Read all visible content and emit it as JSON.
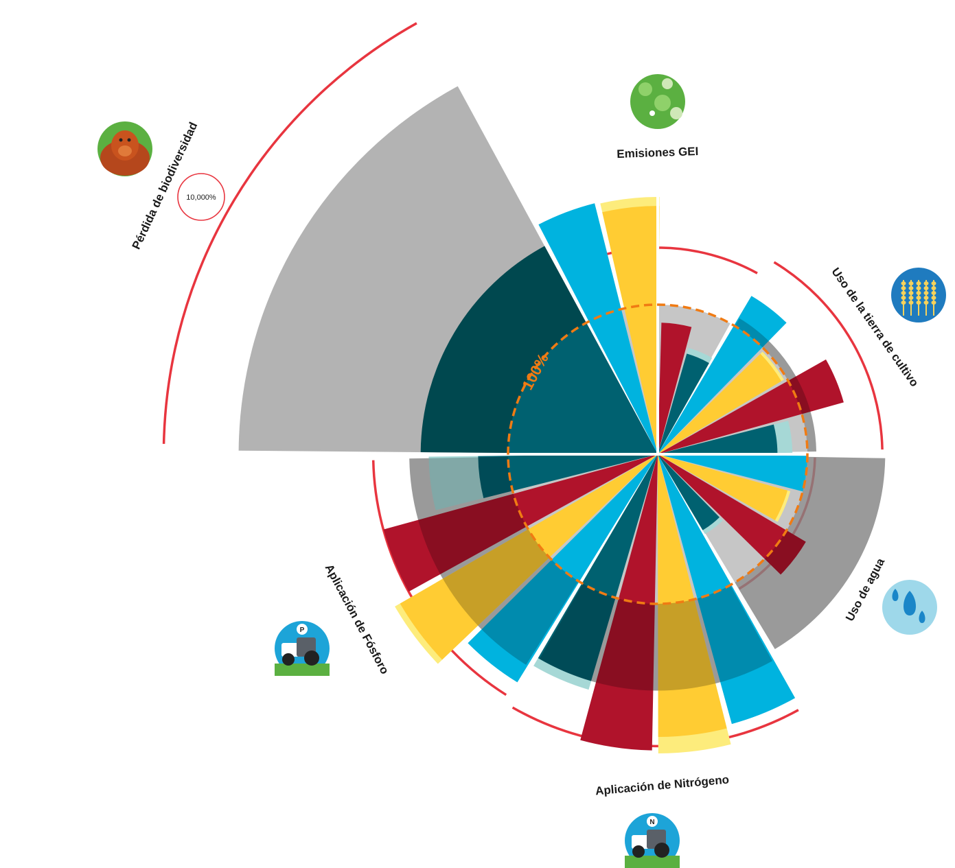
{
  "chart_data": {
    "type": "polar-bar",
    "reference_label": "100%",
    "biodiversity_badge": "10,000%",
    "colors": {
      "boundary": "#e8353f",
      "grey": "#b3b3b3",
      "dark_teal": "#006170",
      "light_teal": "#a6d8d6",
      "yellow": "#ffcc33",
      "light_yellow": "#fdec7c",
      "blue": "#00b3df",
      "red": "#b0132b",
      "reference": "#f07b13"
    },
    "categories": [
      {
        "label": "Emisiones GEI",
        "icon": "globe-emissions-icon",
        "values": {
          "boundary": 128,
          "grey": 100,
          "dark_teal": 70,
          "light_teal": 74,
          "yellow": 166,
          "light_yellow": 172,
          "blue": 173,
          "red": 88
        }
      },
      {
        "label": "Uso de la tierra de cultivo",
        "icon": "wheat-icon",
        "values": {
          "boundary": 140,
          "grey": 106,
          "dark_teal": 80,
          "light_teal": 90,
          "yellow": 96,
          "light_yellow": 98,
          "blue": 123,
          "red": 129
        }
      },
      {
        "label": "Uso de agua",
        "icon": "water-drops-icon",
        "values": {
          "boundary": 95,
          "grey": 152,
          "dark_teal": 59,
          "light_teal": 62,
          "yellow": 90,
          "light_yellow": 92,
          "blue": 100,
          "red": 115
        }
      },
      {
        "label": "Aplicación de Nitrógeno",
        "icon": "nitrogen-tractor-icon",
        "values": {
          "boundary": 185,
          "grey": 158,
          "dark_teal": 158,
          "light_teal": 164,
          "yellow": 189,
          "light_yellow": 200,
          "blue": 187,
          "red": 198
        }
      },
      {
        "label": "Aplicación de Fósforo",
        "icon": "phosphorus-tractor-icon",
        "values": {
          "boundary": 180,
          "grey": 166,
          "dark_teal": 120,
          "light_teal": 153,
          "yellow": 199,
          "light_yellow": 203,
          "blue": 179,
          "red": 190
        }
      },
      {
        "label": "Pérdida de biodiversidad",
        "icon": "orangutan-icon",
        "values": {
          "boundary": 320,
          "grey": 280,
          "dark_teal": 180,
          "light_teal": 180,
          "yellow": 0,
          "light_yellow": 0,
          "blue": 0,
          "red": 0
        }
      }
    ]
  }
}
